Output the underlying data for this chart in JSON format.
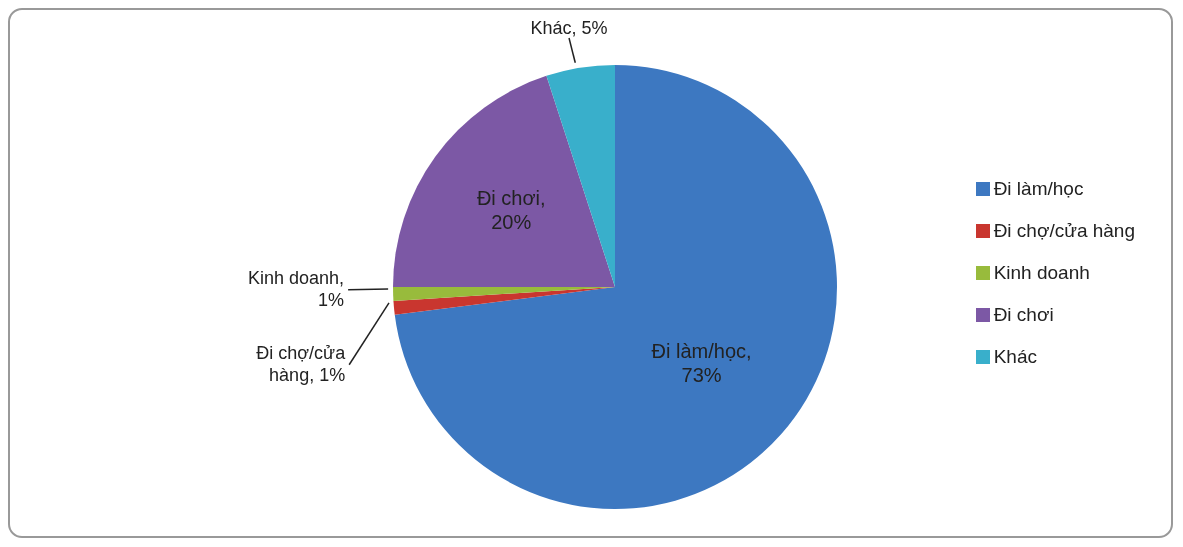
{
  "chart_data": {
    "type": "pie",
    "categories": [
      "Đi làm/học",
      "Đi chợ/cửa hàng",
      "Kinh doanh",
      "Đi chơi",
      "Khác"
    ],
    "values": [
      73,
      1,
      1,
      20,
      5
    ],
    "value_labels": [
      "Đi làm/học, 73%",
      "Đi chợ/cửa hàng, 1%",
      "Kinh doanh, 1%",
      "Đi chơi, 20%",
      "Khác, 5%"
    ],
    "colors": [
      "#3d78c1",
      "#c9362f",
      "#98bb3c",
      "#7c58a5",
      "#39afcb"
    ],
    "legend": "right"
  }
}
